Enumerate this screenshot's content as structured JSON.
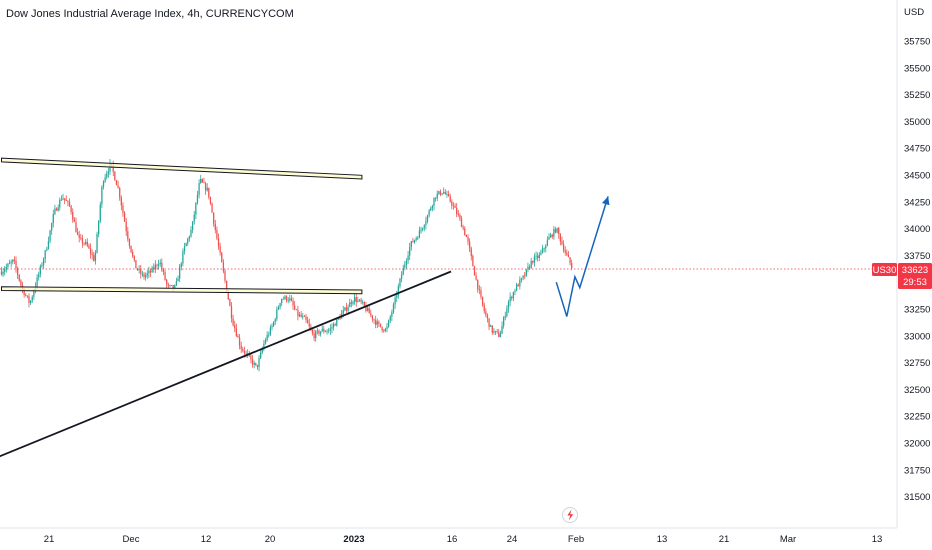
{
  "header": {
    "title": "Dow Jones Industrial Average Index, 4h, CURRENCYCOM"
  },
  "price_axis": {
    "currency": "USD"
  },
  "badges": {
    "symbol": "US30",
    "price": "33623",
    "countdown": "29:53"
  },
  "colors": {
    "up": "#26a69a",
    "down": "#ef5350",
    "badge": "#f23645",
    "zone_fill": "#fff9c4",
    "projection": "#1565c0",
    "trendline": "#131722"
  },
  "icons": {
    "replay": "lightning-icon"
  },
  "chart_data": {
    "type": "candlestick",
    "title": "Dow Jones Industrial Average Index, 4h, CURRENCYCOM",
    "ylim": [
      31400,
      36000
    ],
    "y_ticks": [
      31500,
      31750,
      32000,
      32250,
      32500,
      32750,
      33000,
      33250,
      33500,
      33750,
      34000,
      34250,
      34500,
      34750,
      35000,
      35250,
      35500,
      35750
    ],
    "x_ticks": [
      {
        "label": "21",
        "bold": false
      },
      {
        "label": "Dec",
        "bold": false
      },
      {
        "label": "12",
        "bold": false
      },
      {
        "label": "20",
        "bold": false
      },
      {
        "label": "2023",
        "bold": true
      },
      {
        "label": "16",
        "bold": false
      },
      {
        "label": "24",
        "bold": false
      },
      {
        "label": "Feb",
        "bold": false
      },
      {
        "label": "13",
        "bold": false
      },
      {
        "label": "21",
        "bold": false
      },
      {
        "label": "Mar",
        "bold": false
      },
      {
        "label": "13",
        "bold": false
      }
    ],
    "last_price": 33623,
    "price_path": [
      [
        -0.5,
        33600
      ],
      [
        1,
        33700
      ],
      [
        2,
        33450
      ],
      [
        3,
        33300
      ],
      [
        4,
        33550
      ],
      [
        5,
        33800
      ],
      [
        6,
        34150
      ],
      [
        7,
        34300
      ],
      [
        8,
        34200
      ],
      [
        9,
        33900
      ],
      [
        10,
        33850
      ],
      [
        11,
        33700
      ],
      [
        12,
        34450
      ],
      [
        13,
        34600
      ],
      [
        14,
        34350
      ],
      [
        15,
        33950
      ],
      [
        16,
        33650
      ],
      [
        17,
        33550
      ],
      [
        18,
        33600
      ],
      [
        19,
        33700
      ],
      [
        20,
        33450
      ],
      [
        21,
        33450
      ],
      [
        22,
        33800
      ],
      [
        23,
        34000
      ],
      [
        24,
        34450
      ],
      [
        25,
        34350
      ],
      [
        26,
        33950
      ],
      [
        27,
        33550
      ],
      [
        28,
        33150
      ],
      [
        29,
        32900
      ],
      [
        30,
        32800
      ],
      [
        31,
        32700
      ],
      [
        32,
        32950
      ],
      [
        33,
        33100
      ],
      [
        34,
        33350
      ],
      [
        35,
        33350
      ],
      [
        36,
        33200
      ],
      [
        37,
        33150
      ],
      [
        38,
        33000
      ],
      [
        39,
        33050
      ],
      [
        40,
        33050
      ],
      [
        41,
        33150
      ],
      [
        42,
        33250
      ],
      [
        43,
        33350
      ],
      [
        44,
        33300
      ],
      [
        45,
        33200
      ],
      [
        46,
        33100
      ],
      [
        47,
        33050
      ],
      [
        48,
        33300
      ],
      [
        49,
        33600
      ],
      [
        50,
        33850
      ],
      [
        51,
        33950
      ],
      [
        52,
        34100
      ],
      [
        53,
        34300
      ],
      [
        54,
        34350
      ],
      [
        55,
        34250
      ],
      [
        56,
        34100
      ],
      [
        57,
        33900
      ],
      [
        58,
        33550
      ],
      [
        59,
        33250
      ],
      [
        60,
        33050
      ],
      [
        61,
        33000
      ],
      [
        62,
        33300
      ],
      [
        63,
        33450
      ],
      [
        64,
        33550
      ],
      [
        65,
        33700
      ],
      [
        66,
        33750
      ],
      [
        67,
        33900
      ],
      [
        68,
        34000
      ],
      [
        69,
        33800
      ],
      [
        70,
        33623
      ]
    ],
    "price_path_units": "x = 4h bar index from first visible bar, y = price (USD)",
    "annotations": {
      "resistance_zone": {
        "start": [
          -0.5,
          34640
        ],
        "end": [
          44,
          34480
        ],
        "thickness": 35
      },
      "support_zone": {
        "start": [
          -0.5,
          33440
        ],
        "end": [
          44,
          33410
        ],
        "thickness": 35
      },
      "ascending_trendline": {
        "start": [
          -8,
          31650
        ],
        "end": [
          55,
          33600
        ]
      },
      "projection_path": [
        [
          68,
          33500
        ],
        [
          69.3,
          33180
        ],
        [
          70.3,
          33550
        ],
        [
          70.9,
          33450
        ],
        [
          74.4,
          34300
        ]
      ]
    }
  }
}
